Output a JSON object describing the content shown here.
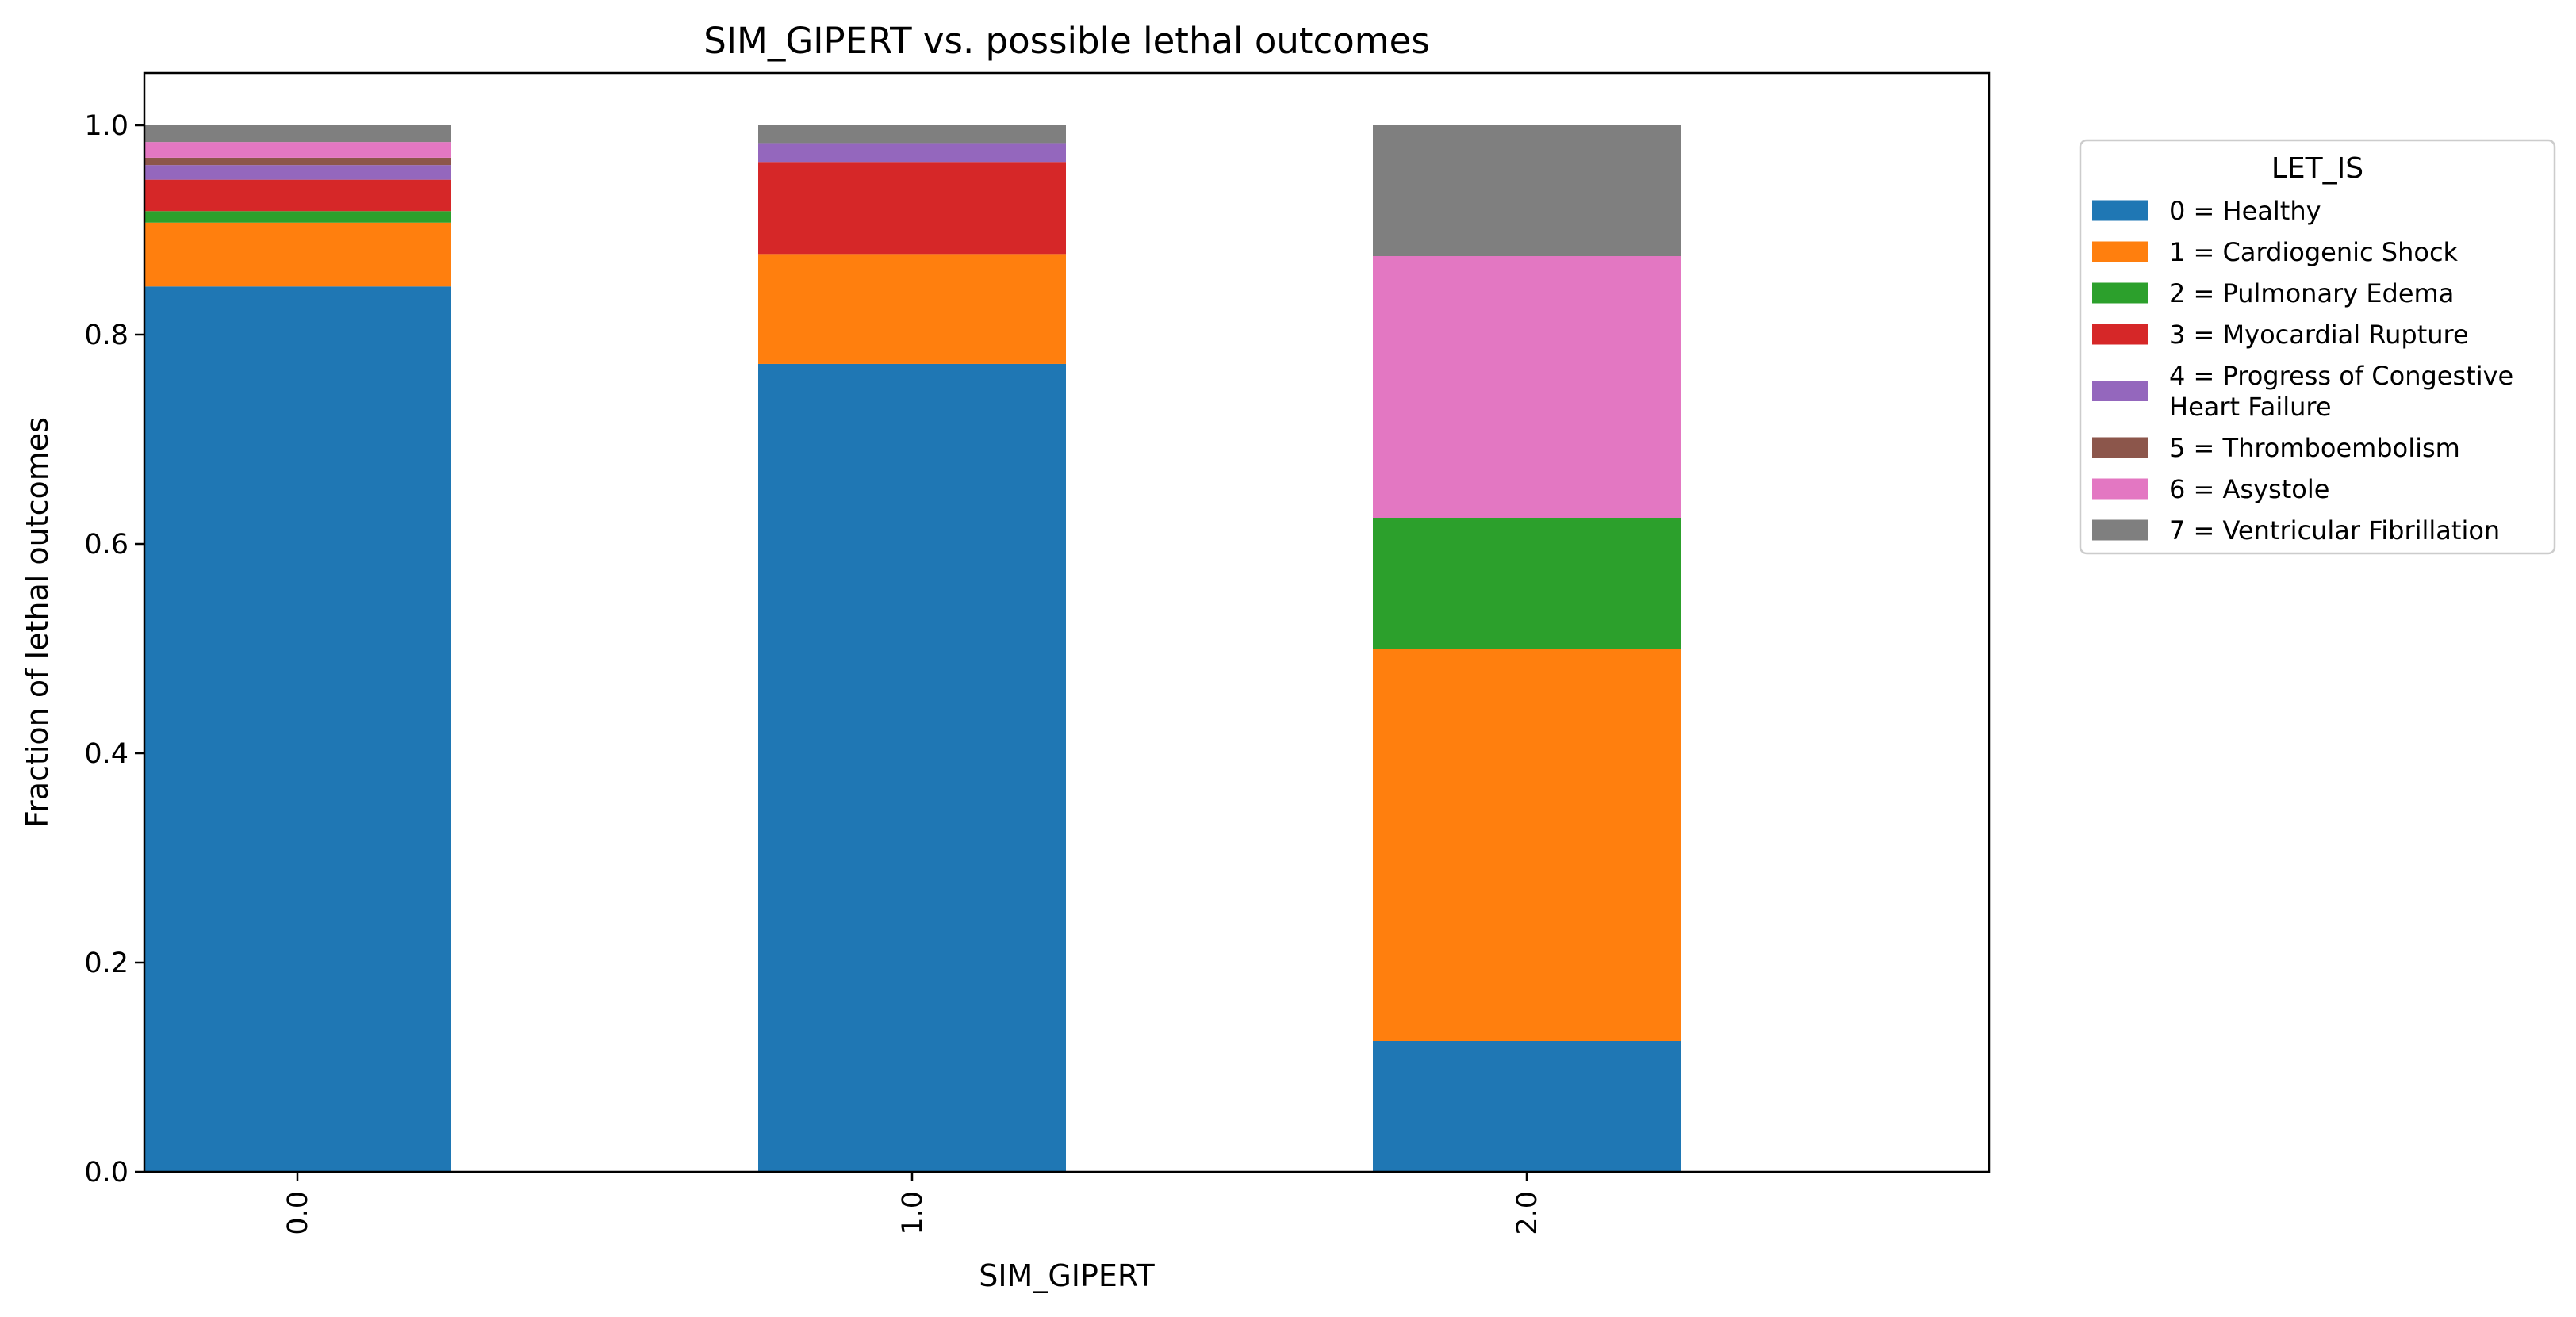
{
  "chart_data": {
    "type": "bar",
    "stacked": true,
    "title": "SIM_GIPERT vs. possible lethal outcomes",
    "xlabel": "SIM_GIPERT",
    "ylabel": "Fraction of lethal outcomes",
    "categories": [
      "0.0",
      "1.0",
      "2.0"
    ],
    "ylim": [
      0,
      1.05
    ],
    "yticks": [
      "0.0",
      "0.2",
      "0.4",
      "0.6",
      "0.8",
      "1.0"
    ],
    "grid": false,
    "legend": {
      "title": "LET_IS",
      "placement": "outside right, top"
    },
    "series": [
      {
        "name": "0 = Healthy",
        "label_lines": [
          "0 = Healthy"
        ],
        "color": "#1f77b4",
        "values": [
          0.846,
          0.772,
          0.125
        ]
      },
      {
        "name": "1 = Cardiogenic Shock",
        "label_lines": [
          "1 = Cardiogenic Shock"
        ],
        "color": "#ff7f0e",
        "values": [
          0.061,
          0.105,
          0.375
        ]
      },
      {
        "name": "2 = Pulmonary Edema",
        "label_lines": [
          "2 = Pulmonary Edema"
        ],
        "color": "#2ca02c",
        "values": [
          0.011,
          0.0,
          0.125
        ]
      },
      {
        "name": "3 = Myocardial Rupture",
        "label_lines": [
          "3 = Myocardial Rupture"
        ],
        "color": "#d62728",
        "values": [
          0.03,
          0.088,
          0.0
        ]
      },
      {
        "name": "4 = Progress of Congestive Heart Failure",
        "label_lines": [
          "4 = Progress of Congestive",
          "Heart Failure"
        ],
        "color": "#9467bd",
        "values": [
          0.014,
          0.018,
          0.0
        ]
      },
      {
        "name": "5 = Thromboembolism",
        "label_lines": [
          "5 = Thromboembolism"
        ],
        "color": "#8c564b",
        "values": [
          0.007,
          0.0,
          0.0
        ]
      },
      {
        "name": "6 = Asystole",
        "label_lines": [
          "6 = Asystole"
        ],
        "color": "#e377c2",
        "values": [
          0.015,
          0.0,
          0.25
        ]
      },
      {
        "name": "7 = Ventricular Fibrillation",
        "label_lines": [
          "7 = Ventricular Fibrillation"
        ],
        "color": "#7f7f7f",
        "values": [
          0.016,
          0.017,
          0.125
        ]
      }
    ]
  }
}
